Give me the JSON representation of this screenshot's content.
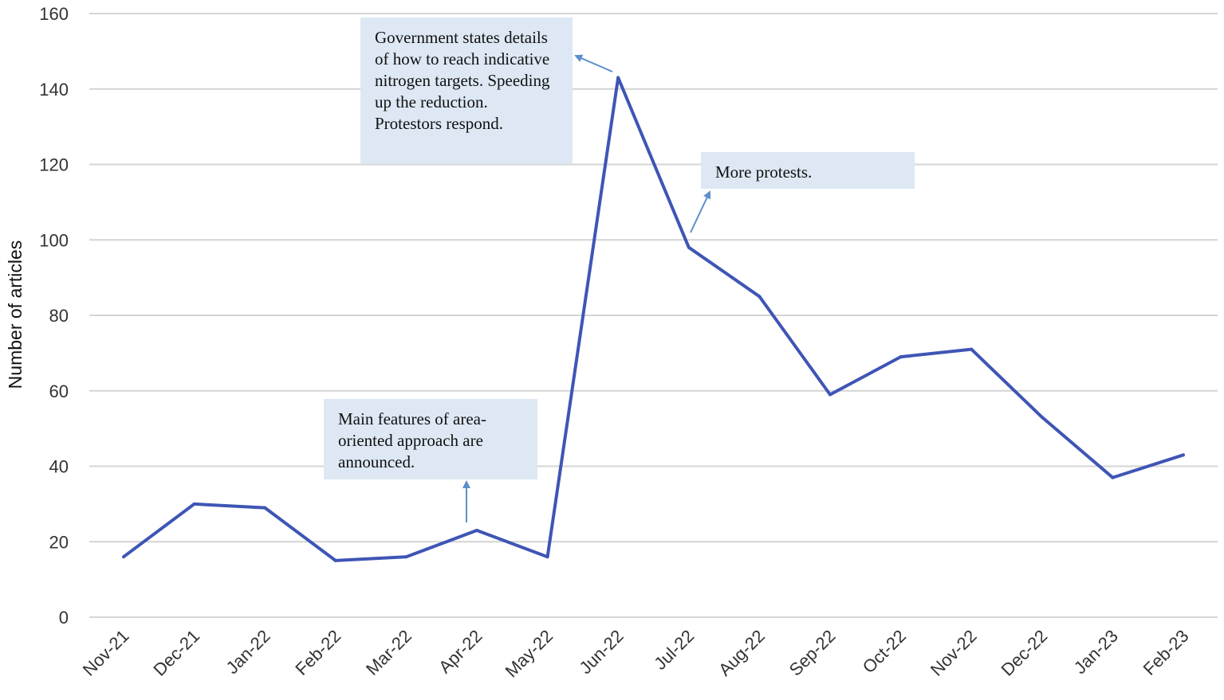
{
  "chart_data": {
    "type": "line",
    "title": "",
    "xlabel": "",
    "ylabel": "Number of articles",
    "ylim": [
      0,
      160
    ],
    "yticks": [
      0,
      20,
      40,
      60,
      80,
      100,
      120,
      140,
      160
    ],
    "categories": [
      "Nov-21",
      "Dec-21",
      "Jan-22",
      "Feb-22",
      "Mar-22",
      "Apr-22",
      "May-22",
      "Jun-22",
      "Jul-22",
      "Aug-22",
      "Sep-22",
      "Oct-22",
      "Nov-22",
      "Dec-22",
      "Jan-23",
      "Feb-23"
    ],
    "series": [
      {
        "name": "Number of articles",
        "color": "#3f55b5",
        "values": [
          16,
          30,
          29,
          15,
          16,
          23,
          16,
          143,
          98,
          85,
          59,
          69,
          71,
          53,
          37,
          43
        ]
      }
    ],
    "grid": true,
    "annotations": [
      {
        "id": "ann-area",
        "text": "Main features of area-oriented approach are announced.",
        "target": "Apr-22"
      },
      {
        "id": "ann-gov",
        "text": "Government states details of how to reach indicative nitrogen targets. Speeding up the reduction. Protestors respond.",
        "target": "Jun-22"
      },
      {
        "id": "ann-protests",
        "text": "More protests.",
        "target": "Jul-22"
      }
    ]
  }
}
